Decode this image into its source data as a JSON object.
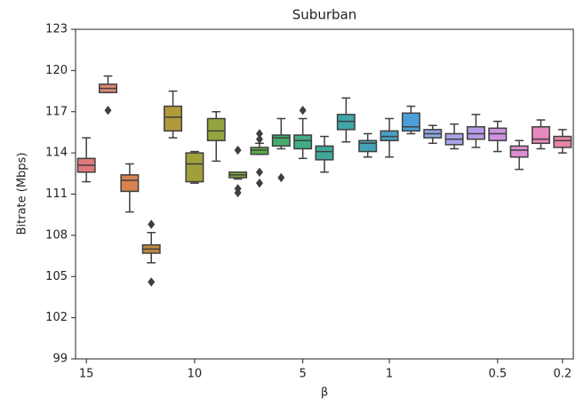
{
  "chart_data": {
    "type": "box",
    "title": "Suburban",
    "x_label": "β",
    "y_label": "Bitrate (Mbps)",
    "categories": [
      "15",
      null,
      null,
      null,
      null,
      "10",
      null,
      null,
      null,
      null,
      "5",
      null,
      null,
      null,
      "1",
      null,
      null,
      null,
      null,
      "0.5",
      null,
      null,
      "0.2"
    ],
    "colors": [
      "#e0787e",
      "#e2877a",
      "#d6834c",
      "#c08b3c",
      "#b09a3c",
      "#a09f3a",
      "#93a63d",
      "#7ea93d",
      "#5dab4b",
      "#47ac6b",
      "#41ab86",
      "#3fa898",
      "#40a6a6",
      "#42a4b5",
      "#47a2c5",
      "#4b9fd8",
      "#8ba6e0",
      "#a7a5e6",
      "#b89be6",
      "#cd93df",
      "#dd8ed2",
      "#e589bf",
      "#e786a6"
    ],
    "whisker_low": [
      111.9,
      118.4,
      109.7,
      106.0,
      115.1,
      111.8,
      113.4,
      112.1,
      113.9,
      114.3,
      113.6,
      112.6,
      114.8,
      113.7,
      113.7,
      115.4,
      114.7,
      114.3,
      114.4,
      114.1,
      112.8,
      114.3,
      114.0
    ],
    "q1": [
      112.6,
      118.4,
      111.2,
      106.7,
      115.6,
      111.9,
      114.9,
      112.2,
      113.9,
      114.5,
      114.3,
      113.5,
      115.7,
      114.1,
      114.9,
      115.6,
      115.1,
      114.6,
      115.0,
      114.9,
      113.7,
      114.7,
      114.4
    ],
    "median": [
      113.1,
      118.7,
      112.0,
      107.0,
      116.6,
      113.2,
      115.6,
      112.4,
      114.2,
      115.1,
      114.9,
      114.1,
      116.3,
      114.7,
      115.2,
      115.9,
      115.4,
      115.0,
      115.4,
      115.4,
      114.2,
      115.0,
      114.9
    ],
    "q3": [
      113.6,
      119.0,
      112.4,
      107.3,
      117.4,
      114.0,
      116.5,
      112.6,
      114.4,
      115.3,
      115.3,
      114.5,
      116.8,
      114.9,
      115.6,
      116.9,
      115.7,
      115.4,
      115.9,
      115.8,
      114.5,
      115.9,
      115.2
    ],
    "whisker_high": [
      115.1,
      119.6,
      113.2,
      108.2,
      118.5,
      114.1,
      117.0,
      112.6,
      114.7,
      116.5,
      116.5,
      115.2,
      118.0,
      115.4,
      116.5,
      117.4,
      116.0,
      116.1,
      116.8,
      116.3,
      114.9,
      116.4,
      115.7
    ],
    "outliers": [
      [],
      [
        117.1
      ],
      [],
      [
        108.8,
        104.6
      ],
      [],
      [],
      [],
      [
        114.2,
        111.4,
        111.1
      ],
      [
        115.4,
        115.0,
        112.6,
        111.8
      ],
      [
        112.2
      ],
      [
        117.1
      ],
      [],
      [],
      [],
      [],
      [],
      [],
      [],
      [],
      [],
      [],
      [],
      []
    ],
    "ylim": [
      99,
      123
    ],
    "yticks": [
      99,
      102,
      105,
      108,
      111,
      114,
      117,
      120,
      123
    ]
  }
}
